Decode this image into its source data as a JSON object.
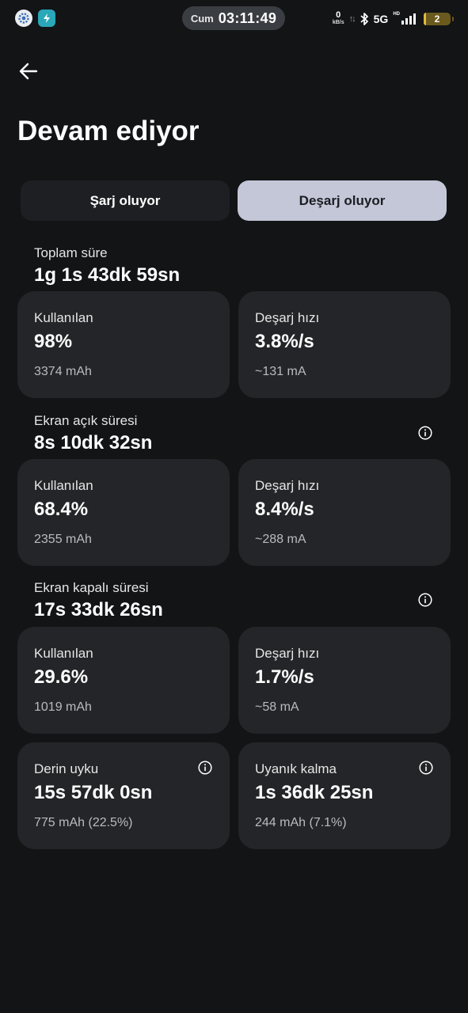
{
  "status_bar": {
    "day": "Cum",
    "time": "03:11:49",
    "net_speed": "0",
    "net_unit": "kB/s",
    "network": "5G",
    "hd_label": "HD",
    "battery_text": "2",
    "icons": [
      "settings-app-icon",
      "lightning-app-icon",
      "bluetooth-icon",
      "signal-icon",
      "battery-icon"
    ]
  },
  "header": {
    "title": "Devam ediyor"
  },
  "tabs": [
    {
      "label": "Şarj oluyor",
      "selected": false
    },
    {
      "label": "Deşarj oluyor",
      "selected": true
    }
  ],
  "sections": [
    {
      "label": "Toplam süre",
      "value": "1g 1s 43dk 59sn",
      "info": false,
      "cards": [
        {
          "label": "Kullanılan",
          "value": "98%",
          "sub": "3374 mAh"
        },
        {
          "label": "Deşarj hızı",
          "value": "3.8%/s",
          "sub": "~131 mA"
        }
      ]
    },
    {
      "label": "Ekran açık süresi",
      "value": "8s 10dk 32sn",
      "info": true,
      "cards": [
        {
          "label": "Kullanılan",
          "value": "68.4%",
          "sub": "2355 mAh"
        },
        {
          "label": "Deşarj hızı",
          "value": "8.4%/s",
          "sub": "~288 mA"
        }
      ]
    },
    {
      "label": "Ekran kapalı süresi",
      "value": "17s 33dk 26sn",
      "info": true,
      "cards": [
        {
          "label": "Kullanılan",
          "value": "29.6%",
          "sub": "1019 mAh"
        },
        {
          "label": "Deşarj hızı",
          "value": "1.7%/s",
          "sub": "~58 mA"
        }
      ]
    }
  ],
  "sleep_cards": [
    {
      "label": "Derin uyku",
      "value": "15s 57dk 0sn",
      "sub": "775 mAh (22.5%)"
    },
    {
      "label": "Uyanık kalma",
      "value": "1s 36dk 25sn",
      "sub": "244 mAh (7.1%)"
    }
  ],
  "colors": {
    "background": "#121416",
    "card": "#242528",
    "tab_selected": "#c3c7d7",
    "tab_unselected": "#1d1f22"
  }
}
